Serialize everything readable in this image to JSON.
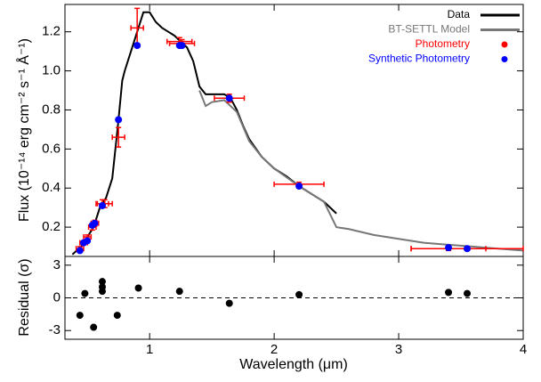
{
  "chart_data": [
    {
      "type": "sed",
      "ylabel": "Flux (10⁻¹⁴ erg cm⁻² s⁻¹ Å⁻¹)",
      "xlim": [
        0.32,
        4
      ],
      "ylim": [
        0.05,
        1.34
      ],
      "yticks": [
        0.2,
        0.4,
        0.6,
        0.8,
        {
          "value": 1,
          "label": "1.0"
        },
        1.2
      ],
      "legend": "upper right",
      "series": [
        {
          "name": "Data",
          "kind": "line",
          "color": "#000000",
          "x": [
            0.38,
            0.45,
            0.5,
            0.55,
            0.6,
            0.65,
            0.7,
            0.75,
            0.78,
            0.8,
            0.85,
            0.9,
            0.95,
            1.0,
            1.05,
            1.1,
            1.15,
            1.2,
            1.25,
            1.3,
            1.35,
            1.4,
            1.45,
            1.5,
            1.55,
            1.6,
            1.65,
            1.7,
            1.75,
            1.8,
            1.9,
            2.0,
            2.1,
            2.2,
            2.3,
            2.4,
            2.5
          ],
          "values": [
            0.06,
            0.1,
            0.15,
            0.2,
            0.3,
            0.35,
            0.45,
            0.75,
            0.95,
            1.0,
            1.1,
            1.2,
            1.3,
            1.3,
            1.25,
            1.22,
            1.2,
            1.18,
            1.15,
            1.12,
            1.05,
            0.92,
            0.88,
            0.88,
            0.88,
            0.88,
            0.86,
            0.8,
            0.72,
            0.65,
            0.56,
            0.5,
            0.46,
            0.41,
            0.37,
            0.33,
            0.27
          ]
        },
        {
          "name": "BT-SETTL Model",
          "kind": "line",
          "color": "#777777",
          "x": [
            1.4,
            1.45,
            1.5,
            1.6,
            1.7,
            1.8,
            1.9,
            2.0,
            2.2,
            2.4,
            2.5,
            2.6,
            2.8,
            3.0,
            3.2,
            3.4,
            3.6,
            3.8,
            4.0
          ],
          "values": [
            0.9,
            0.82,
            0.84,
            0.85,
            0.79,
            0.64,
            0.56,
            0.5,
            0.41,
            0.33,
            0.2,
            0.19,
            0.16,
            0.14,
            0.12,
            0.11,
            0.1,
            0.09,
            0.08
          ]
        },
        {
          "name": "Photometry",
          "kind": "errorbar",
          "color": "#ff0000",
          "x": [
            0.44,
            0.47,
            0.5,
            0.54,
            0.56,
            0.62,
            0.64,
            0.75,
            0.9,
            1.24,
            1.26,
            1.64,
            2.2,
            3.4,
            3.55
          ],
          "values": [
            0.09,
            0.12,
            0.15,
            0.2,
            0.22,
            0.32,
            0.32,
            0.66,
            1.22,
            1.15,
            1.14,
            0.86,
            0.42,
            0.09,
            0.09
          ],
          "xerr": [
            0.03,
            0.03,
            0.03,
            0.03,
            0.03,
            0.05,
            0.06,
            0.05,
            0.05,
            0.1,
            0.1,
            0.12,
            0.2,
            0.3,
            0.45
          ],
          "yerr": [
            0.01,
            0.01,
            0.01,
            0.015,
            0.015,
            0.02,
            0.02,
            0.05,
            0.1,
            0.02,
            0.02,
            0.02,
            0.01,
            0.01,
            0.01
          ]
        },
        {
          "name": "Synthetic Photometry",
          "kind": "dot",
          "color": "#0000ff",
          "x": [
            0.44,
            0.47,
            0.5,
            0.54,
            0.56,
            0.62,
            0.75,
            0.9,
            1.24,
            1.26,
            1.64,
            2.2,
            3.4,
            3.55
          ],
          "values": [
            0.08,
            0.12,
            0.13,
            0.21,
            0.22,
            0.31,
            0.75,
            1.13,
            1.13,
            1.13,
            0.86,
            0.41,
            0.095,
            0.09
          ]
        }
      ]
    },
    {
      "type": "residual",
      "ylabel": "Residual (σ)",
      "xlabel": "Wavelength (μm)",
      "xlim": [
        0.32,
        4
      ],
      "ylim": [
        -3.8,
        3.8
      ],
      "xticks": [
        1,
        2,
        3,
        4
      ],
      "yticks": [
        -3,
        0,
        3
      ],
      "zero_line": true,
      "color": "#000000",
      "x": [
        0.44,
        0.48,
        0.55,
        0.62,
        0.62,
        0.62,
        0.74,
        0.91,
        1.24,
        1.64,
        2.2,
        3.4,
        3.55
      ],
      "values": [
        -1.6,
        0.4,
        -2.7,
        1.5,
        1.0,
        0.6,
        -1.6,
        0.9,
        0.6,
        -0.5,
        0.3,
        0.5,
        0.4
      ]
    }
  ]
}
